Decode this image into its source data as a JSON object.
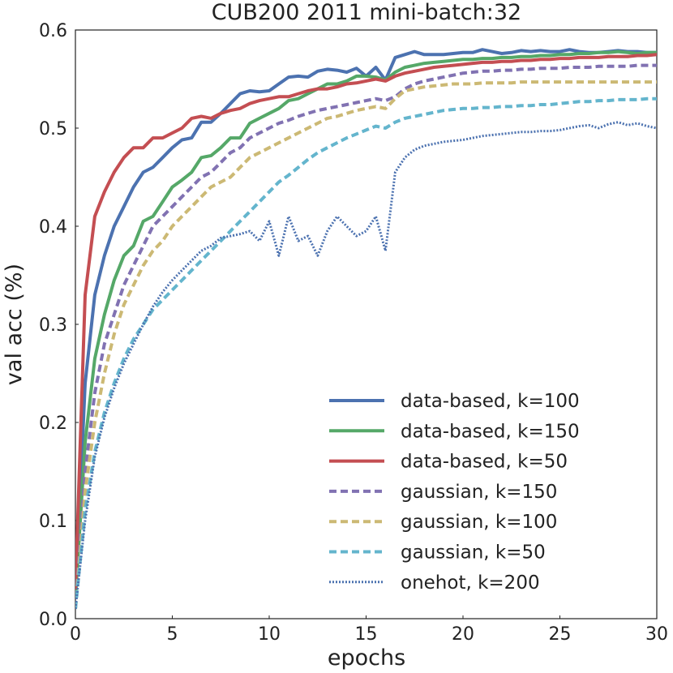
{
  "chart_data": {
    "type": "line",
    "title": "CUB200 2011 mini-batch:32",
    "xlabel": "epochs",
    "ylabel": "val acc (%)",
    "xlim": [
      0,
      30
    ],
    "ylim": [
      0.0,
      0.6
    ],
    "xticks": [
      0,
      5,
      10,
      15,
      20,
      25,
      30
    ],
    "yticks": [
      0.0,
      0.1,
      0.2,
      0.3,
      0.4,
      0.5,
      0.6
    ],
    "xtick_labels": [
      "0",
      "5",
      "10",
      "15",
      "20",
      "25",
      "30"
    ],
    "ytick_labels": [
      "0.0",
      "0.1",
      "0.2",
      "0.3",
      "0.4",
      "0.5",
      "0.6"
    ],
    "grid": false,
    "legend_position": "lower-right",
    "x": [
      0,
      0.5,
      1,
      1.5,
      2,
      2.5,
      3,
      3.5,
      4,
      4.5,
      5,
      5.5,
      6,
      6.5,
      7,
      7.5,
      8,
      8.5,
      9,
      9.5,
      10,
      10.5,
      11,
      11.5,
      12,
      12.5,
      13,
      13.5,
      14,
      14.5,
      15,
      15.5,
      16,
      16.5,
      17,
      17.5,
      18,
      18.5,
      19,
      19.5,
      20,
      20.5,
      21,
      21.5,
      22,
      22.5,
      23,
      23.5,
      24,
      24.5,
      25,
      25.5,
      26,
      26.5,
      27,
      27.5,
      28,
      28.5,
      29,
      29.5,
      30
    ],
    "series": [
      {
        "name": "data-based, k=100",
        "color": "#4c72b0",
        "style": "solid",
        "values": [
          0.02,
          0.24,
          0.33,
          0.37,
          0.4,
          0.42,
          0.44,
          0.455,
          0.46,
          0.47,
          0.48,
          0.488,
          0.49,
          0.506,
          0.506,
          0.515,
          0.525,
          0.535,
          0.538,
          0.537,
          0.538,
          0.545,
          0.552,
          0.553,
          0.552,
          0.558,
          0.56,
          0.559,
          0.557,
          0.561,
          0.553,
          0.562,
          0.549,
          0.572,
          0.575,
          0.578,
          0.575,
          0.575,
          0.575,
          0.576,
          0.577,
          0.577,
          0.58,
          0.578,
          0.576,
          0.577,
          0.579,
          0.578,
          0.579,
          0.578,
          0.578,
          0.58,
          0.578,
          0.577,
          0.577,
          0.578,
          0.579,
          0.578,
          0.578,
          0.577,
          0.577
        ]
      },
      {
        "name": "data-based, k=150",
        "color": "#55a868",
        "style": "solid",
        "values": [
          0.02,
          0.18,
          0.265,
          0.31,
          0.345,
          0.37,
          0.38,
          0.405,
          0.41,
          0.425,
          0.44,
          0.447,
          0.455,
          0.47,
          0.472,
          0.48,
          0.49,
          0.49,
          0.505,
          0.51,
          0.515,
          0.52,
          0.528,
          0.53,
          0.535,
          0.54,
          0.545,
          0.545,
          0.548,
          0.553,
          0.553,
          0.552,
          0.549,
          0.557,
          0.562,
          0.564,
          0.566,
          0.567,
          0.568,
          0.569,
          0.57,
          0.57,
          0.571,
          0.571,
          0.572,
          0.572,
          0.573,
          0.573,
          0.574,
          0.574,
          0.575,
          0.575,
          0.576,
          0.576,
          0.577,
          0.577,
          0.578,
          0.577,
          0.576,
          0.577,
          0.577
        ]
      },
      {
        "name": "data-based, k=50",
        "color": "#c44e52",
        "style": "solid",
        "values": [
          0.03,
          0.33,
          0.41,
          0.435,
          0.455,
          0.47,
          0.48,
          0.48,
          0.49,
          0.49,
          0.495,
          0.5,
          0.51,
          0.512,
          0.51,
          0.515,
          0.518,
          0.52,
          0.525,
          0.528,
          0.53,
          0.532,
          0.532,
          0.535,
          0.538,
          0.54,
          0.54,
          0.542,
          0.545,
          0.546,
          0.548,
          0.55,
          0.548,
          0.553,
          0.556,
          0.558,
          0.56,
          0.562,
          0.563,
          0.564,
          0.565,
          0.566,
          0.567,
          0.567,
          0.568,
          0.568,
          0.569,
          0.569,
          0.57,
          0.57,
          0.571,
          0.571,
          0.572,
          0.572,
          0.572,
          0.573,
          0.573,
          0.573,
          0.574,
          0.574,
          0.575
        ]
      },
      {
        "name": "gaussian, k=150",
        "color": "#8172b2",
        "style": "dashed",
        "values": [
          0.01,
          0.15,
          0.23,
          0.28,
          0.31,
          0.34,
          0.36,
          0.38,
          0.4,
          0.41,
          0.42,
          0.43,
          0.44,
          0.45,
          0.455,
          0.465,
          0.475,
          0.48,
          0.49,
          0.495,
          0.5,
          0.505,
          0.508,
          0.512,
          0.515,
          0.518,
          0.52,
          0.522,
          0.524,
          0.526,
          0.528,
          0.53,
          0.528,
          0.532,
          0.54,
          0.545,
          0.548,
          0.55,
          0.552,
          0.554,
          0.556,
          0.557,
          0.558,
          0.558,
          0.559,
          0.559,
          0.56,
          0.56,
          0.561,
          0.561,
          0.561,
          0.562,
          0.562,
          0.562,
          0.563,
          0.563,
          0.563,
          0.563,
          0.564,
          0.564,
          0.564
        ]
      },
      {
        "name": "gaussian, k=100",
        "color": "#ccb974",
        "style": "dashed",
        "values": [
          0.01,
          0.13,
          0.2,
          0.25,
          0.29,
          0.32,
          0.34,
          0.36,
          0.375,
          0.385,
          0.4,
          0.41,
          0.42,
          0.43,
          0.44,
          0.445,
          0.45,
          0.46,
          0.47,
          0.475,
          0.48,
          0.485,
          0.49,
          0.495,
          0.5,
          0.505,
          0.51,
          0.512,
          0.515,
          0.518,
          0.52,
          0.522,
          0.52,
          0.53,
          0.538,
          0.54,
          0.542,
          0.543,
          0.544,
          0.545,
          0.545,
          0.545,
          0.546,
          0.546,
          0.546,
          0.546,
          0.547,
          0.547,
          0.547,
          0.547,
          0.547,
          0.547,
          0.547,
          0.547,
          0.547,
          0.547,
          0.547,
          0.547,
          0.547,
          0.547,
          0.547
        ]
      },
      {
        "name": "gaussian, k=50",
        "color": "#64b5cd",
        "style": "dashed",
        "values": [
          0.01,
          0.11,
          0.17,
          0.21,
          0.24,
          0.265,
          0.285,
          0.3,
          0.315,
          0.325,
          0.335,
          0.345,
          0.355,
          0.365,
          0.375,
          0.385,
          0.395,
          0.405,
          0.415,
          0.425,
          0.435,
          0.445,
          0.452,
          0.46,
          0.468,
          0.475,
          0.48,
          0.485,
          0.49,
          0.494,
          0.498,
          0.502,
          0.5,
          0.506,
          0.51,
          0.512,
          0.514,
          0.516,
          0.518,
          0.519,
          0.52,
          0.52,
          0.521,
          0.521,
          0.522,
          0.522,
          0.523,
          0.523,
          0.524,
          0.524,
          0.525,
          0.526,
          0.527,
          0.527,
          0.528,
          0.528,
          0.529,
          0.529,
          0.529,
          0.53,
          0.53
        ]
      },
      {
        "name": "onehot, k=200",
        "color": "#4c72b0",
        "style": "dotted",
        "values": [
          0.01,
          0.1,
          0.165,
          0.205,
          0.235,
          0.26,
          0.28,
          0.3,
          0.318,
          0.333,
          0.345,
          0.355,
          0.365,
          0.375,
          0.38,
          0.388,
          0.39,
          0.392,
          0.395,
          0.385,
          0.405,
          0.37,
          0.41,
          0.385,
          0.39,
          0.37,
          0.395,
          0.41,
          0.4,
          0.39,
          0.395,
          0.41,
          0.375,
          0.455,
          0.47,
          0.478,
          0.482,
          0.484,
          0.486,
          0.487,
          0.488,
          0.49,
          0.492,
          0.493,
          0.494,
          0.495,
          0.496,
          0.496,
          0.497,
          0.497,
          0.498,
          0.5,
          0.502,
          0.503,
          0.5,
          0.504,
          0.506,
          0.503,
          0.505,
          0.502,
          0.5
        ]
      }
    ]
  }
}
